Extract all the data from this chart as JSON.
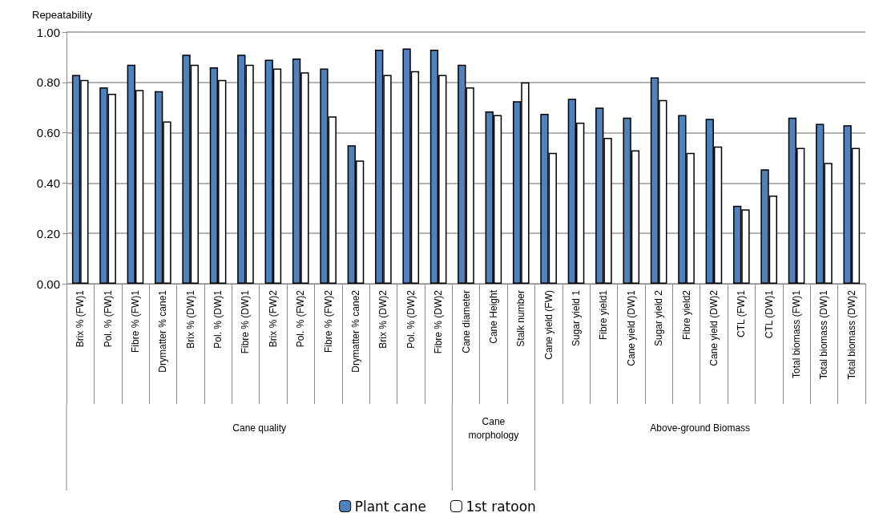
{
  "chart_data": {
    "type": "bar",
    "ylabel": "Repeatability",
    "categories": [
      "Brix % (FW)1",
      "Pol. % (FW)1",
      "Fibre % (FW)1",
      "Drymatter % cane1",
      "Brix % (DW)1",
      "Pol. % (DW)1",
      "Fibre % (DW)1",
      "Brix % (FW)2",
      "Pol. % (FW)2",
      "Fibre % (FW)2",
      "Drymatter % cane2",
      "Brix % (DW)2",
      "Pol. % (DW)2",
      "Fibre % (DW)2",
      "Cane diameter",
      "Cane Height",
      "Stalk number",
      "Cane yield (FW)",
      "Sugar yield 1",
      "Fibre yield1",
      "Cane yield (DW)1",
      "Sugar yield 2",
      "Fibre yield2",
      "Cane yield (DW)2",
      "CTL (FW)1",
      "CTL (DW)1",
      "Total biomass (FW)1",
      "Total biomass (DW)1",
      "Total biomass (DW)2"
    ],
    "series": [
      {
        "name": "Plant cane",
        "color": "#4f81bd",
        "values": [
          0.83,
          0.78,
          0.87,
          0.765,
          0.91,
          0.86,
          0.91,
          0.89,
          0.895,
          0.855,
          0.55,
          0.93,
          0.935,
          0.93,
          0.87,
          0.685,
          0.725,
          0.675,
          0.735,
          0.7,
          0.66,
          0.82,
          0.67,
          0.655,
          0.31,
          0.455,
          0.66,
          0.635,
          0.63
        ]
      },
      {
        "name": "1st ratoon",
        "color": "#ffffff",
        "values": [
          0.81,
          0.755,
          0.77,
          0.645,
          0.87,
          0.81,
          0.87,
          0.855,
          0.84,
          0.665,
          0.49,
          0.83,
          0.845,
          0.83,
          0.78,
          0.67,
          0.8,
          0.52,
          0.64,
          0.58,
          0.53,
          0.73,
          0.52,
          0.545,
          0.295,
          0.35,
          0.54,
          0.48,
          0.54
        ]
      }
    ],
    "ylim": [
      0,
      1
    ],
    "yticks": [
      {
        "value": 0,
        "label": "0.00"
      },
      {
        "value": 0.2,
        "label": "0.20"
      },
      {
        "value": 0.4,
        "label": "0.40"
      },
      {
        "value": 0.6,
        "label": "0.60"
      },
      {
        "value": 0.8,
        "label": "0.80"
      },
      {
        "value": 1,
        "label": "1.00"
      }
    ],
    "grid": "y",
    "legend": "bottom",
    "annotations": [
      "Cane quality",
      "Cane\nmorphology",
      "Above-ground Biomass"
    ]
  }
}
